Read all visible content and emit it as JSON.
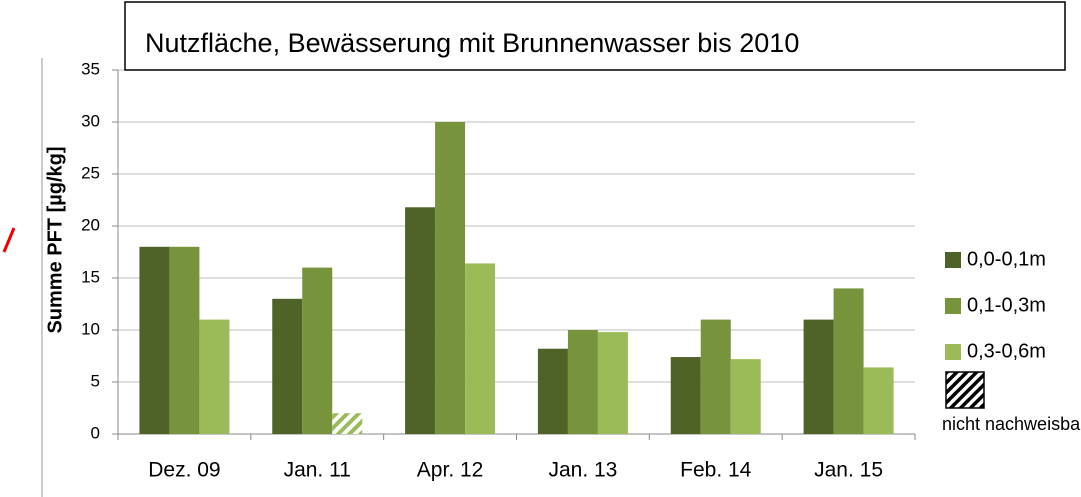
{
  "chart_data": {
    "type": "bar",
    "title": "Nutzfläche, Bewässerung mit Brunnenwasser bis 2010",
    "y_label": "Summe PFT [µg/kg]",
    "categories": [
      "Dez. 09",
      "Jan. 11",
      "Apr. 12",
      "Jan. 13",
      "Feb. 14",
      "Jan. 15"
    ],
    "series": [
      {
        "name": "0,0-0,1m",
        "color": "#4f6228",
        "values": [
          18,
          13,
          21.8,
          8.2,
          7.4,
          11
        ]
      },
      {
        "name": "0,1-0,3m",
        "color": "#77933c",
        "values": [
          18,
          16,
          30,
          10,
          11,
          14
        ]
      },
      {
        "name": "0,3-0,6m",
        "color": "#9bbb59",
        "values": [
          11,
          2,
          16.4,
          9.8,
          7.2,
          6.4
        ]
      }
    ],
    "hatched": {
      "series": 2,
      "index": 1,
      "name": "nicht nachweisbar"
    },
    "ylim": [
      0,
      35
    ],
    "yticks": [
      0,
      5,
      10,
      15,
      20,
      25,
      30,
      35
    ],
    "grid": true,
    "legend": "right"
  }
}
